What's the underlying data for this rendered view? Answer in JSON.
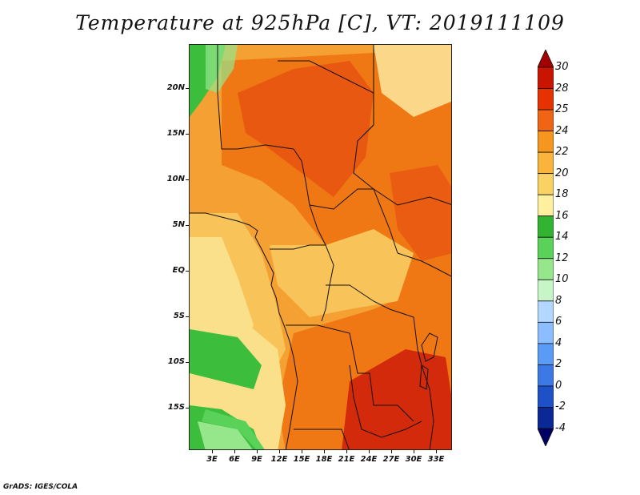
{
  "title": "Temperature at 925hPa [C], VT: 2019111109",
  "footer": "GrADS: IGES/COLA",
  "map": {
    "lat_labels": [
      "20N",
      "15N",
      "10N",
      "5N",
      "EQ",
      "5S",
      "10S",
      "15S"
    ],
    "lon_labels": [
      "3E",
      "6E",
      "9E",
      "12E",
      "15E",
      "18E",
      "21E",
      "24E",
      "27E",
      "30E",
      "33E"
    ]
  },
  "colorbar": {
    "labels": [
      "30",
      "28",
      "25",
      "24",
      "22",
      "20",
      "18",
      "16",
      "14",
      "12",
      "10",
      "8",
      "6",
      "4",
      "2",
      "0",
      "-2",
      "-4"
    ],
    "colors": [
      "#a50000",
      "#c81400",
      "#e63200",
      "#f06414",
      "#f5961e",
      "#fab43c",
      "#fad264",
      "#fff0a0",
      "#32b432",
      "#5ad25a",
      "#96e68c",
      "#c8f5c8",
      "#b4d7ff",
      "#8cbeff",
      "#5a9bf5",
      "#3c78e6",
      "#1e50c8",
      "#0a2896",
      "#000064"
    ]
  },
  "palette": {
    "hot": "#d22a0a",
    "orange": "#f07814",
    "lightorange": "#f5a032",
    "tan": "#f8c45a",
    "yellow": "#fbe08c",
    "green": "#3cbe3c",
    "lightgreen": "#96e68c"
  }
}
